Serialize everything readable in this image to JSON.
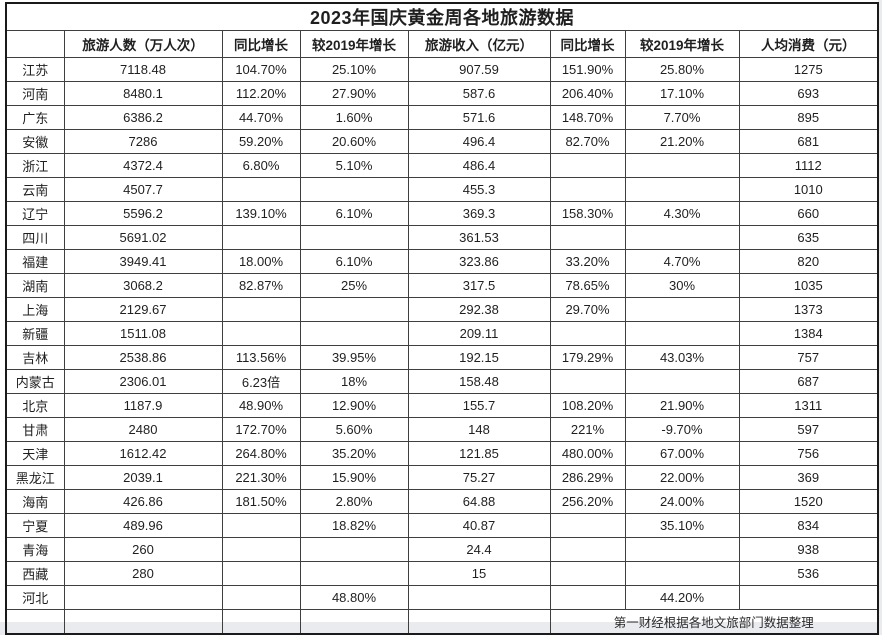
{
  "table": {
    "title": "2023年国庆黄金周各地旅游数据",
    "columns": [
      "",
      "旅游人数（万人次）",
      "同比增长",
      "较2019年增长",
      "旅游收入（亿元）",
      "同比增长",
      "较2019年增长",
      "人均消费（元）"
    ],
    "rows": [
      [
        "江苏",
        "7118.48",
        "104.70%",
        "25.10%",
        "907.59",
        "151.90%",
        "25.80%",
        "1275"
      ],
      [
        "河南",
        "8480.1",
        "112.20%",
        "27.90%",
        "587.6",
        "206.40%",
        "17.10%",
        "693"
      ],
      [
        "广东",
        "6386.2",
        "44.70%",
        "1.60%",
        "571.6",
        "148.70%",
        "7.70%",
        "895"
      ],
      [
        "安徽",
        "7286",
        "59.20%",
        "20.60%",
        "496.4",
        "82.70%",
        "21.20%",
        "681"
      ],
      [
        "浙江",
        "4372.4",
        "6.80%",
        "5.10%",
        "486.4",
        "",
        "",
        "1112"
      ],
      [
        "云南",
        "4507.7",
        "",
        "",
        "455.3",
        "",
        "",
        "1010"
      ],
      [
        "辽宁",
        "5596.2",
        "139.10%",
        "6.10%",
        "369.3",
        "158.30%",
        "4.30%",
        "660"
      ],
      [
        "四川",
        "5691.02",
        "",
        "",
        "361.53",
        "",
        "",
        "635"
      ],
      [
        "福建",
        "3949.41",
        "18.00%",
        "6.10%",
        "323.86",
        "33.20%",
        "4.70%",
        "820"
      ],
      [
        "湖南",
        "3068.2",
        "82.87%",
        "25%",
        "317.5",
        "78.65%",
        "30%",
        "1035"
      ],
      [
        "上海",
        "2129.67",
        "",
        "",
        "292.38",
        "29.70%",
        "",
        "1373"
      ],
      [
        "新疆",
        "1511.08",
        "",
        "",
        "209.11",
        "",
        "",
        "1384"
      ],
      [
        "吉林",
        "2538.86",
        "113.56%",
        "39.95%",
        "192.15",
        "179.29%",
        "43.03%",
        "757"
      ],
      [
        "内蒙古",
        "2306.01",
        "6.23倍",
        "18%",
        "158.48",
        "",
        "",
        "687"
      ],
      [
        "北京",
        "1187.9",
        "48.90%",
        "12.90%",
        "155.7",
        "108.20%",
        "21.90%",
        "1311"
      ],
      [
        "甘肃",
        "2480",
        "172.70%",
        "5.60%",
        "148",
        "221%",
        "-9.70%",
        "597"
      ],
      [
        "天津",
        "1612.42",
        "264.80%",
        "35.20%",
        "121.85",
        "480.00%",
        "67.00%",
        "756"
      ],
      [
        "黑龙江",
        "2039.1",
        "221.30%",
        "15.90%",
        "75.27",
        "286.29%",
        "22.00%",
        "369"
      ],
      [
        "海南",
        "426.86",
        "181.50%",
        "2.80%",
        "64.88",
        "256.20%",
        "24.00%",
        "1520"
      ],
      [
        "宁夏",
        "489.96",
        "",
        "18.82%",
        "40.87",
        "",
        "35.10%",
        "834"
      ],
      [
        "青海",
        "260",
        "",
        "",
        "24.4",
        "",
        "",
        "938"
      ],
      [
        "西藏",
        "280",
        "",
        "",
        "15",
        "",
        "",
        "536"
      ],
      [
        "河北",
        "",
        "",
        "48.80%",
        "",
        "",
        "44.20%",
        ""
      ]
    ],
    "footer_source": "第一财经根据各地文旅部门数据整理"
  },
  "colors": {
    "selection_green": "#7bab7b",
    "grid_line": "#3f3f3f",
    "outer_border": "#1a1a1a",
    "sheet_background": "#ffffff",
    "page_background": "#e9ebee"
  }
}
